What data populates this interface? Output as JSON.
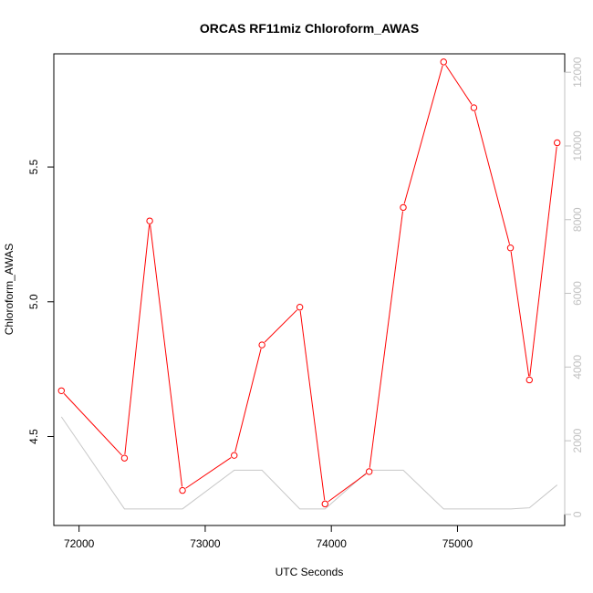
{
  "chart_data": {
    "type": "line",
    "title": "ORCAS RF11miz Chloroform_AWAS",
    "xlabel": "UTC Seconds",
    "ylabel": "Chloroform_AWAS",
    "y2label": "",
    "xlim": [
      71800,
      75850
    ],
    "ylim": [
      4.17,
      5.92
    ],
    "y2lim": [
      -300,
      12500
    ],
    "x_ticks": [
      72000,
      73000,
      74000,
      75000
    ],
    "y_ticks": [
      4.5,
      5.0,
      5.5
    ],
    "y2_ticks": [
      0,
      2000,
      4000,
      6000,
      8000,
      10000,
      12000
    ],
    "grid": false,
    "series": [
      {
        "axis": "left",
        "color": "#ff0000",
        "marker": "circle",
        "x": [
          71860,
          72360,
          72560,
          72820,
          73230,
          73450,
          73750,
          73950,
          74300,
          74570,
          74890,
          75130,
          75420,
          75570,
          75790
        ],
        "y": [
          4.67,
          4.42,
          5.3,
          4.3,
          4.43,
          4.84,
          4.98,
          4.25,
          4.37,
          5.35,
          5.89,
          5.72,
          5.2,
          4.71,
          5.59
        ]
      },
      {
        "axis": "right",
        "color": "#c8c8c8",
        "marker": "none",
        "x": [
          71860,
          72360,
          72820,
          73230,
          73450,
          73750,
          73950,
          74300,
          74570,
          74890,
          75420,
          75570,
          75790
        ],
        "y": [
          2650,
          150,
          150,
          1200,
          1200,
          150,
          150,
          1200,
          1200,
          150,
          150,
          180,
          800
        ]
      }
    ]
  }
}
